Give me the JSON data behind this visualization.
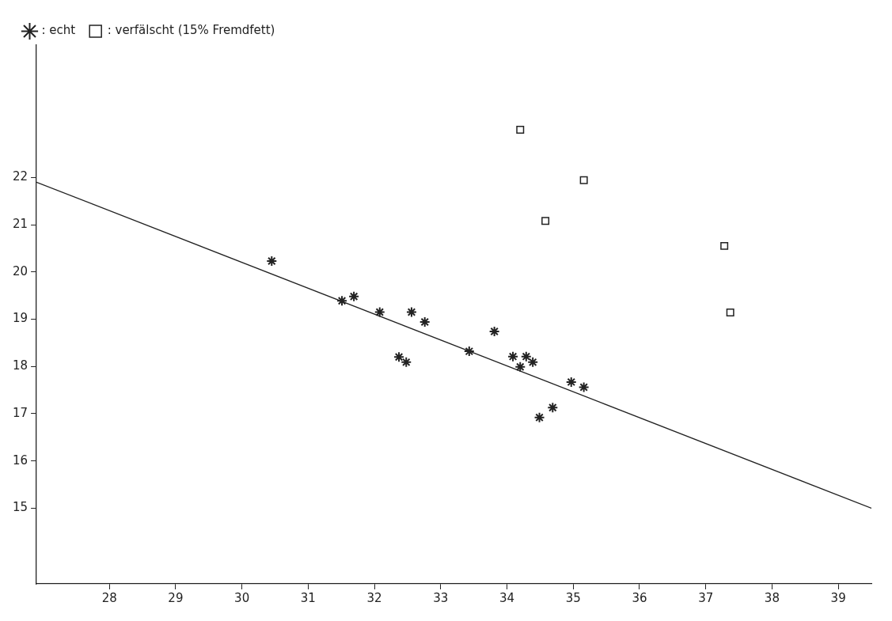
{
  "chart_data": {
    "type": "scatter",
    "xlim": [
      26.9,
      39.5
    ],
    "xticks": [
      28,
      29,
      30,
      31,
      32,
      33,
      34,
      35,
      36,
      37,
      38,
      39
    ],
    "ylim": [
      13.4,
      24.8
    ],
    "yticks": [
      15,
      16,
      17,
      18,
      19,
      20,
      21,
      22
    ],
    "grid": false,
    "legend": "top left",
    "series": [
      {
        "name": ": echt",
        "color": "#222222",
        "marker": "cross",
        "x": [
          30.45,
          31.51,
          31.69,
          32.08,
          32.56,
          32.76,
          32.37,
          32.48,
          33.43,
          33.81,
          34.09,
          34.2,
          34.29,
          34.39,
          34.97,
          35.16,
          34.69,
          34.49
        ],
        "values": [
          20.23,
          19.39,
          19.48,
          19.15,
          19.15,
          18.94,
          18.2,
          18.09,
          18.32,
          18.74,
          18.21,
          17.99,
          18.21,
          18.09,
          17.67,
          17.56,
          17.13,
          16.92
        ]
      },
      {
        "name": ": verfälscht (15% Fremdfett)",
        "color": "#222222",
        "marker": "square",
        "x": [
          34.2,
          35.16,
          34.58,
          37.28,
          37.37
        ],
        "values": [
          23.01,
          21.94,
          21.08,
          20.55,
          19.14
        ]
      },
      {
        "type": "line",
        "color": "#222222",
        "marker": "none",
        "x": [
          26.9,
          39.5
        ],
        "values": [
          21.9,
          15.0
        ]
      }
    ]
  }
}
